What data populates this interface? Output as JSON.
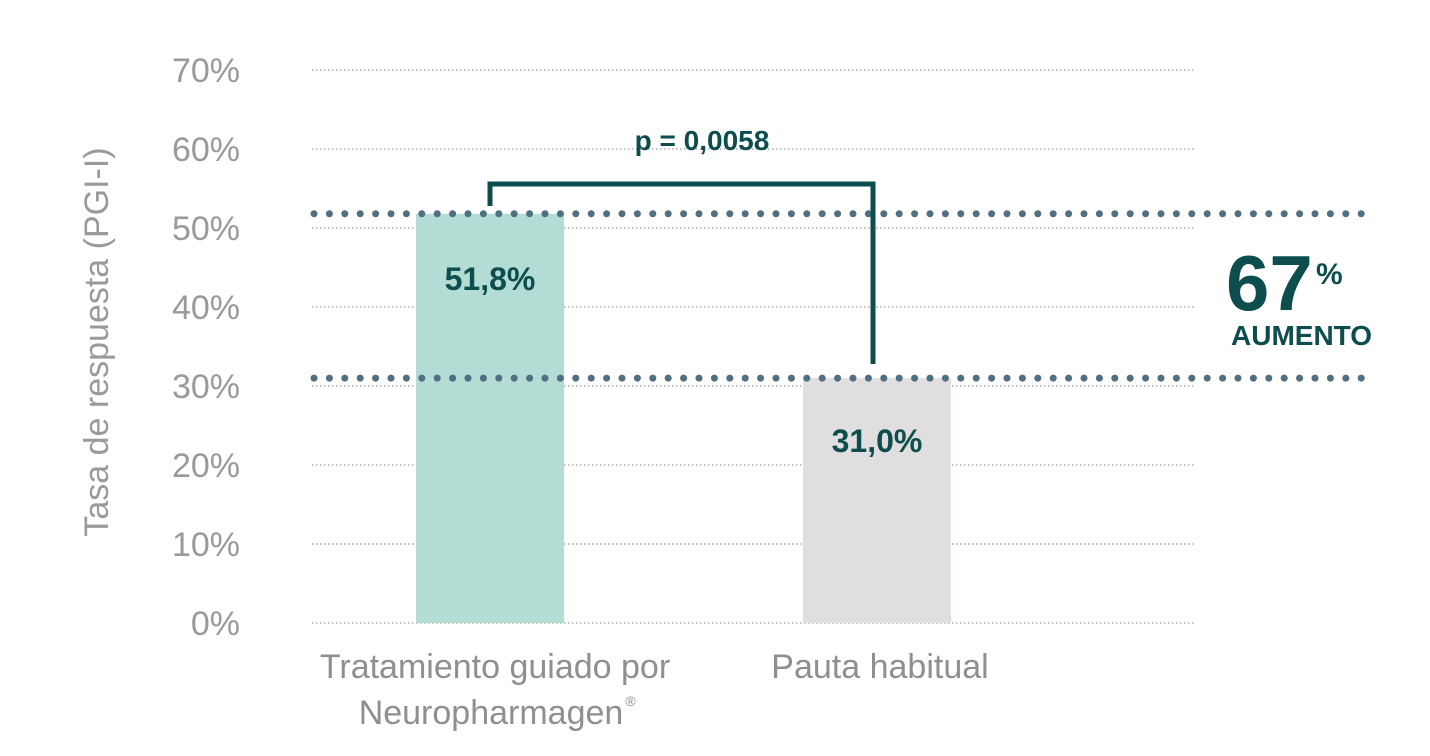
{
  "chart_data": {
    "type": "bar",
    "ylabel": "Tasa de respuesta (PGI-I)",
    "ylim": [
      0,
      70
    ],
    "yticks": [
      0,
      10,
      20,
      30,
      40,
      50,
      60,
      70
    ],
    "ytick_labels": [
      "0%",
      "10%",
      "20%",
      "30%",
      "40%",
      "50%",
      "60%",
      "70%"
    ],
    "categories": [
      {
        "line1": "Tratamiento guiado por",
        "line2": "Neuropharmagen",
        "mark": "®"
      },
      {
        "line1": "Pauta habitual",
        "line2": "",
        "mark": ""
      }
    ],
    "values": [
      51.8,
      31.0
    ],
    "value_labels": [
      "51,8%",
      "31,0%"
    ],
    "bar_colors": [
      "#b3ddd4",
      "#e0dedf"
    ],
    "grid": true,
    "annotations": {
      "p_value": "p = 0,0058",
      "increase_number": "67",
      "increase_symbol": "%",
      "increase_label": "AUMENTO"
    },
    "colors": {
      "accent": "#0d4d4d",
      "dots": "#4f6f82",
      "grid": "#9a9a9a"
    }
  }
}
